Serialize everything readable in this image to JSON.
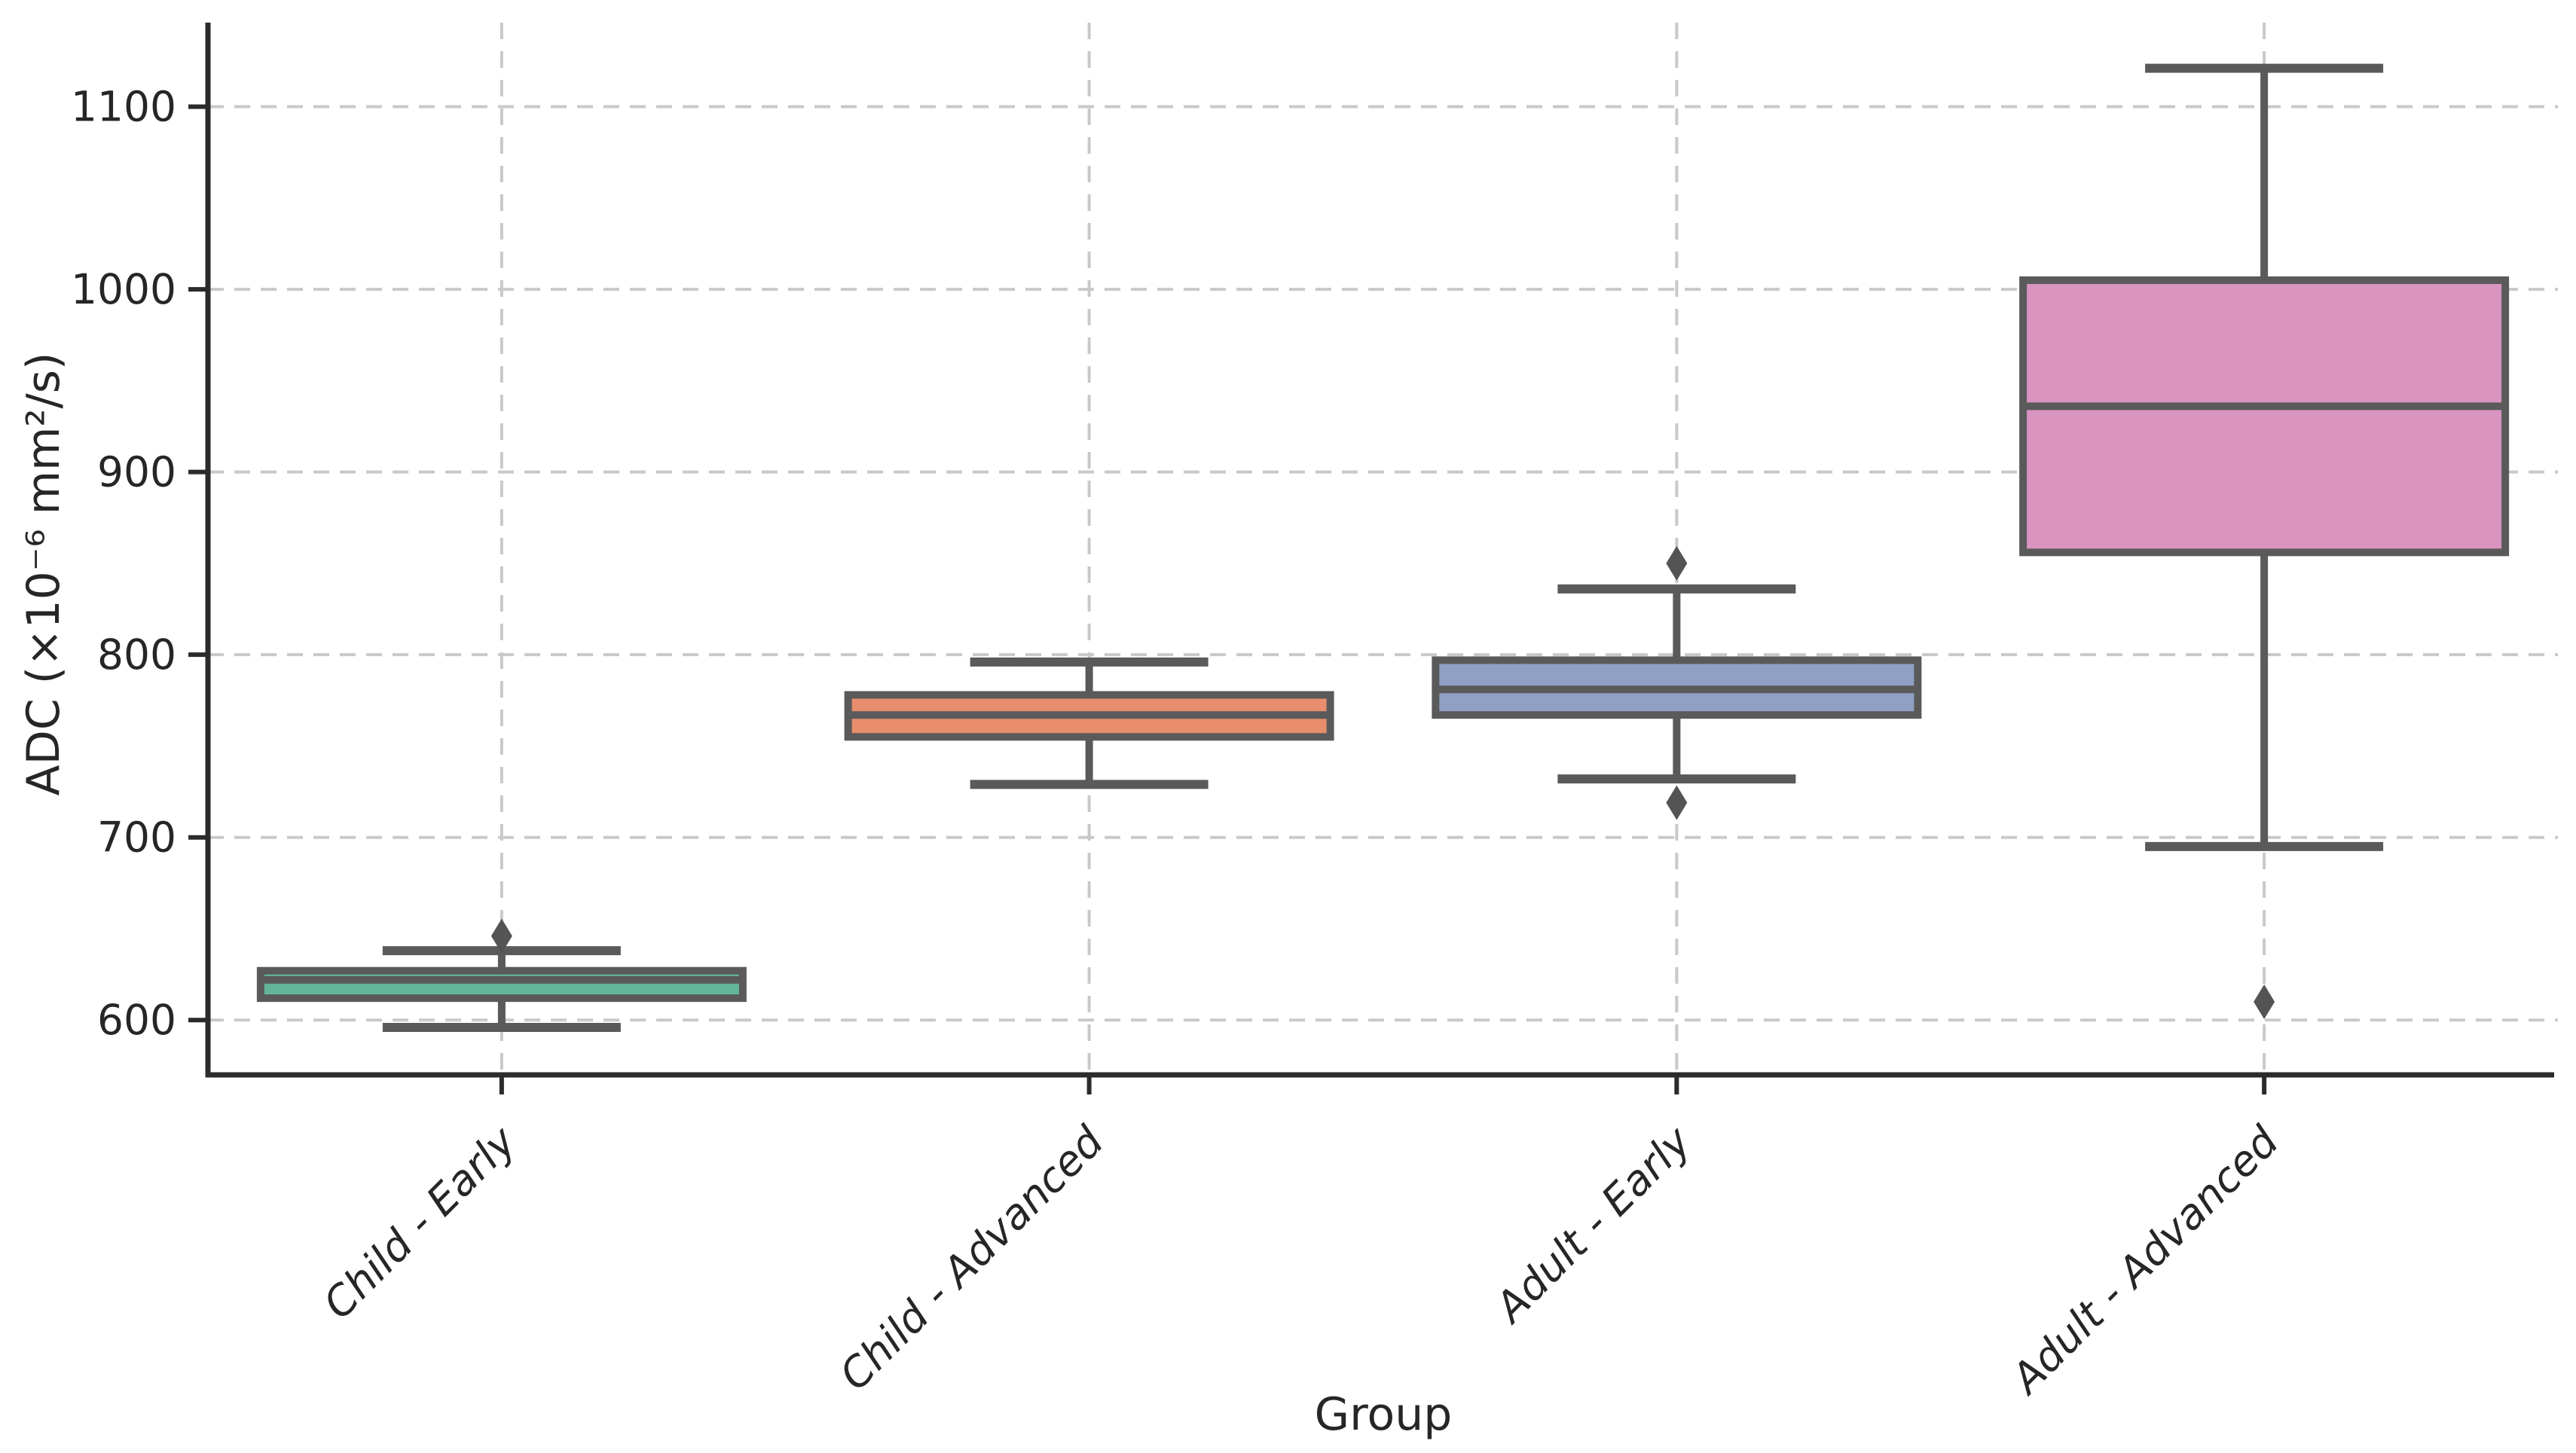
{
  "chart_data": {
    "type": "box",
    "title": "",
    "xlabel": "Group",
    "ylabel": "ADC (×10⁻⁶ mm²/s)",
    "categories": [
      "Child - Early",
      "Child - Advanced",
      "Adult - Early",
      "Adult - Advanced"
    ],
    "ylim": [
      570,
      1146
    ],
    "yticks": [
      600,
      700,
      800,
      900,
      1000,
      1100
    ],
    "grid": "x-and-y-dashed",
    "legend": "none",
    "boxes": [
      {
        "label": "Child - Early",
        "whislo": 596,
        "q1": 612,
        "med": 622,
        "q3": 627,
        "whishi": 638,
        "outliers": [
          646
        ],
        "fill": "#63b69a"
      },
      {
        "label": "Child - Advanced",
        "whislo": 729,
        "q1": 755,
        "med": 767,
        "q3": 778,
        "whishi": 796,
        "outliers": [],
        "fill": "#e88d6d"
      },
      {
        "label": "Adult - Early",
        "whislo": 732,
        "q1": 767,
        "med": 781,
        "q3": 797,
        "whishi": 836,
        "outliers": [
          850,
          719
        ],
        "fill": "#8fa0c4"
      },
      {
        "label": "Adult - Advanced",
        "whislo": 695,
        "q1": 856,
        "med": 936,
        "q3": 1005,
        "whishi": 1121,
        "outliers": [
          610
        ],
        "fill": "#d994c0"
      }
    ],
    "style": {
      "edge_color": "#5a5a5a",
      "flier_color": "#545454",
      "grid_color": "#c9c9c9",
      "spine_color": "#2b2b2b",
      "text_color": "#262626",
      "background": "#ffffff"
    }
  }
}
